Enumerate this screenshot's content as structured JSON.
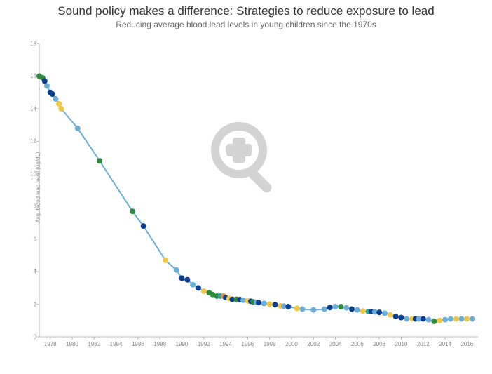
{
  "title": "Sound policy makes a difference: Strategies to reduce exposure to lead",
  "subtitle": "Reducing average blood lead levels in young children since the 1970s",
  "ylabel": "Avg. blood lead level (ug/dL)",
  "chart": {
    "type": "line",
    "background_color": "#ffffff",
    "line_color": "#6baed6",
    "line_width": 2,
    "marker_radius": 4,
    "xlim": [
      1977,
      2017
    ],
    "ylim": [
      0,
      18
    ],
    "xtick_step": 2,
    "ytick_step": 2,
    "xtick_start": 1978,
    "xtick_end": 2016,
    "ytick_start": 0,
    "ytick_end": 18,
    "title_fontsize": 17,
    "subtitle_fontsize": 12,
    "label_fontsize": 8,
    "tick_fontsize": 8,
    "grid_on": false,
    "colors": {
      "green": "#2e8b3d",
      "dkblue": "#0b3d91",
      "yellow": "#f2c744",
      "ltblue": "#6baed6",
      "teal": "#2aa39a",
      "orange": "#f08a3c"
    },
    "points": [
      {
        "x": 1977.0,
        "y": 16.0,
        "c": "green"
      },
      {
        "x": 1977.3,
        "y": 15.9,
        "c": "green"
      },
      {
        "x": 1977.5,
        "y": 15.7,
        "c": "dkblue"
      },
      {
        "x": 1977.7,
        "y": 15.4,
        "c": "ltblue"
      },
      {
        "x": 1978.0,
        "y": 15.0,
        "c": "dkblue"
      },
      {
        "x": 1978.2,
        "y": 14.9,
        "c": "dkblue"
      },
      {
        "x": 1978.5,
        "y": 14.6,
        "c": "ltblue"
      },
      {
        "x": 1978.8,
        "y": 14.3,
        "c": "yellow"
      },
      {
        "x": 1979.0,
        "y": 14.0,
        "c": "yellow"
      },
      {
        "x": 1980.5,
        "y": 12.8,
        "c": "ltblue"
      },
      {
        "x": 1982.5,
        "y": 10.8,
        "c": "green"
      },
      {
        "x": 1985.5,
        "y": 7.7,
        "c": "green"
      },
      {
        "x": 1986.5,
        "y": 6.8,
        "c": "dkblue"
      },
      {
        "x": 1988.5,
        "y": 4.7,
        "c": "yellow"
      },
      {
        "x": 1989.5,
        "y": 4.1,
        "c": "ltblue"
      },
      {
        "x": 1990.0,
        "y": 3.6,
        "c": "dkblue"
      },
      {
        "x": 1990.5,
        "y": 3.5,
        "c": "dkblue"
      },
      {
        "x": 1991.0,
        "y": 3.2,
        "c": "ltblue"
      },
      {
        "x": 1991.5,
        "y": 3.0,
        "c": "dkblue"
      },
      {
        "x": 1992.0,
        "y": 2.8,
        "c": "yellow"
      },
      {
        "x": 1992.5,
        "y": 2.7,
        "c": "green"
      },
      {
        "x": 1992.8,
        "y": 2.6,
        "c": "green"
      },
      {
        "x": 1993.2,
        "y": 2.5,
        "c": "green"
      },
      {
        "x": 1993.5,
        "y": 2.5,
        "c": "teal"
      },
      {
        "x": 1993.8,
        "y": 2.5,
        "c": "orange"
      },
      {
        "x": 1994.0,
        "y": 2.4,
        "c": "dkblue"
      },
      {
        "x": 1994.3,
        "y": 2.35,
        "c": "yellow"
      },
      {
        "x": 1994.6,
        "y": 2.3,
        "c": "dkblue"
      },
      {
        "x": 1995.0,
        "y": 2.3,
        "c": "green"
      },
      {
        "x": 1995.3,
        "y": 2.28,
        "c": "dkblue"
      },
      {
        "x": 1995.6,
        "y": 2.25,
        "c": "ltblue"
      },
      {
        "x": 1996.0,
        "y": 2.2,
        "c": "yellow"
      },
      {
        "x": 1996.3,
        "y": 2.18,
        "c": "dkblue"
      },
      {
        "x": 1996.5,
        "y": 2.15,
        "c": "green"
      },
      {
        "x": 1996.8,
        "y": 2.12,
        "c": "ltblue"
      },
      {
        "x": 1997.0,
        "y": 2.1,
        "c": "dkblue"
      },
      {
        "x": 1997.5,
        "y": 2.05,
        "c": "ltblue"
      },
      {
        "x": 1998.0,
        "y": 2.0,
        "c": "yellow"
      },
      {
        "x": 1998.5,
        "y": 1.97,
        "c": "dkblue"
      },
      {
        "x": 1999.0,
        "y": 1.9,
        "c": "yellow"
      },
      {
        "x": 1999.3,
        "y": 1.88,
        "c": "ltblue"
      },
      {
        "x": 1999.7,
        "y": 1.85,
        "c": "dkblue"
      },
      {
        "x": 2000.5,
        "y": 1.75,
        "c": "yellow"
      },
      {
        "x": 2001.0,
        "y": 1.7,
        "c": "ltblue"
      },
      {
        "x": 2002.0,
        "y": 1.65,
        "c": "ltblue"
      },
      {
        "x": 2003.0,
        "y": 1.7,
        "c": "ltblue"
      },
      {
        "x": 2003.5,
        "y": 1.8,
        "c": "dkblue"
      },
      {
        "x": 2004.0,
        "y": 1.85,
        "c": "ltblue"
      },
      {
        "x": 2004.5,
        "y": 1.85,
        "c": "green"
      },
      {
        "x": 2005.0,
        "y": 1.78,
        "c": "ltblue"
      },
      {
        "x": 2005.5,
        "y": 1.7,
        "c": "dkblue"
      },
      {
        "x": 2006.0,
        "y": 1.65,
        "c": "ltblue"
      },
      {
        "x": 2006.5,
        "y": 1.58,
        "c": "yellow"
      },
      {
        "x": 2007.0,
        "y": 1.55,
        "c": "teal"
      },
      {
        "x": 2007.3,
        "y": 1.55,
        "c": "dkblue"
      },
      {
        "x": 2007.6,
        "y": 1.53,
        "c": "ltblue"
      },
      {
        "x": 2008.0,
        "y": 1.5,
        "c": "dkblue"
      },
      {
        "x": 2008.5,
        "y": 1.45,
        "c": "ltblue"
      },
      {
        "x": 2009.0,
        "y": 1.35,
        "c": "yellow"
      },
      {
        "x": 2009.5,
        "y": 1.25,
        "c": "dkblue"
      },
      {
        "x": 2010.0,
        "y": 1.18,
        "c": "dkblue"
      },
      {
        "x": 2010.5,
        "y": 1.1,
        "c": "ltblue"
      },
      {
        "x": 2011.0,
        "y": 1.1,
        "c": "yellow"
      },
      {
        "x": 2011.3,
        "y": 1.1,
        "c": "dkblue"
      },
      {
        "x": 2011.6,
        "y": 1.1,
        "c": "ltblue"
      },
      {
        "x": 2012.0,
        "y": 1.1,
        "c": "dkblue"
      },
      {
        "x": 2012.5,
        "y": 1.05,
        "c": "ltblue"
      },
      {
        "x": 2013.0,
        "y": 0.95,
        "c": "green"
      },
      {
        "x": 2013.5,
        "y": 1.0,
        "c": "yellow"
      },
      {
        "x": 2014.0,
        "y": 1.05,
        "c": "ltblue"
      },
      {
        "x": 2014.5,
        "y": 1.1,
        "c": "ltblue"
      },
      {
        "x": 2015.0,
        "y": 1.1,
        "c": "yellow"
      },
      {
        "x": 2015.5,
        "y": 1.1,
        "c": "ltblue"
      },
      {
        "x": 2016.0,
        "y": 1.1,
        "c": "yellow"
      },
      {
        "x": 2016.5,
        "y": 1.1,
        "c": "ltblue"
      }
    ]
  },
  "watermark": {
    "color": "#cccccc",
    "icon": "magnify-plus"
  }
}
